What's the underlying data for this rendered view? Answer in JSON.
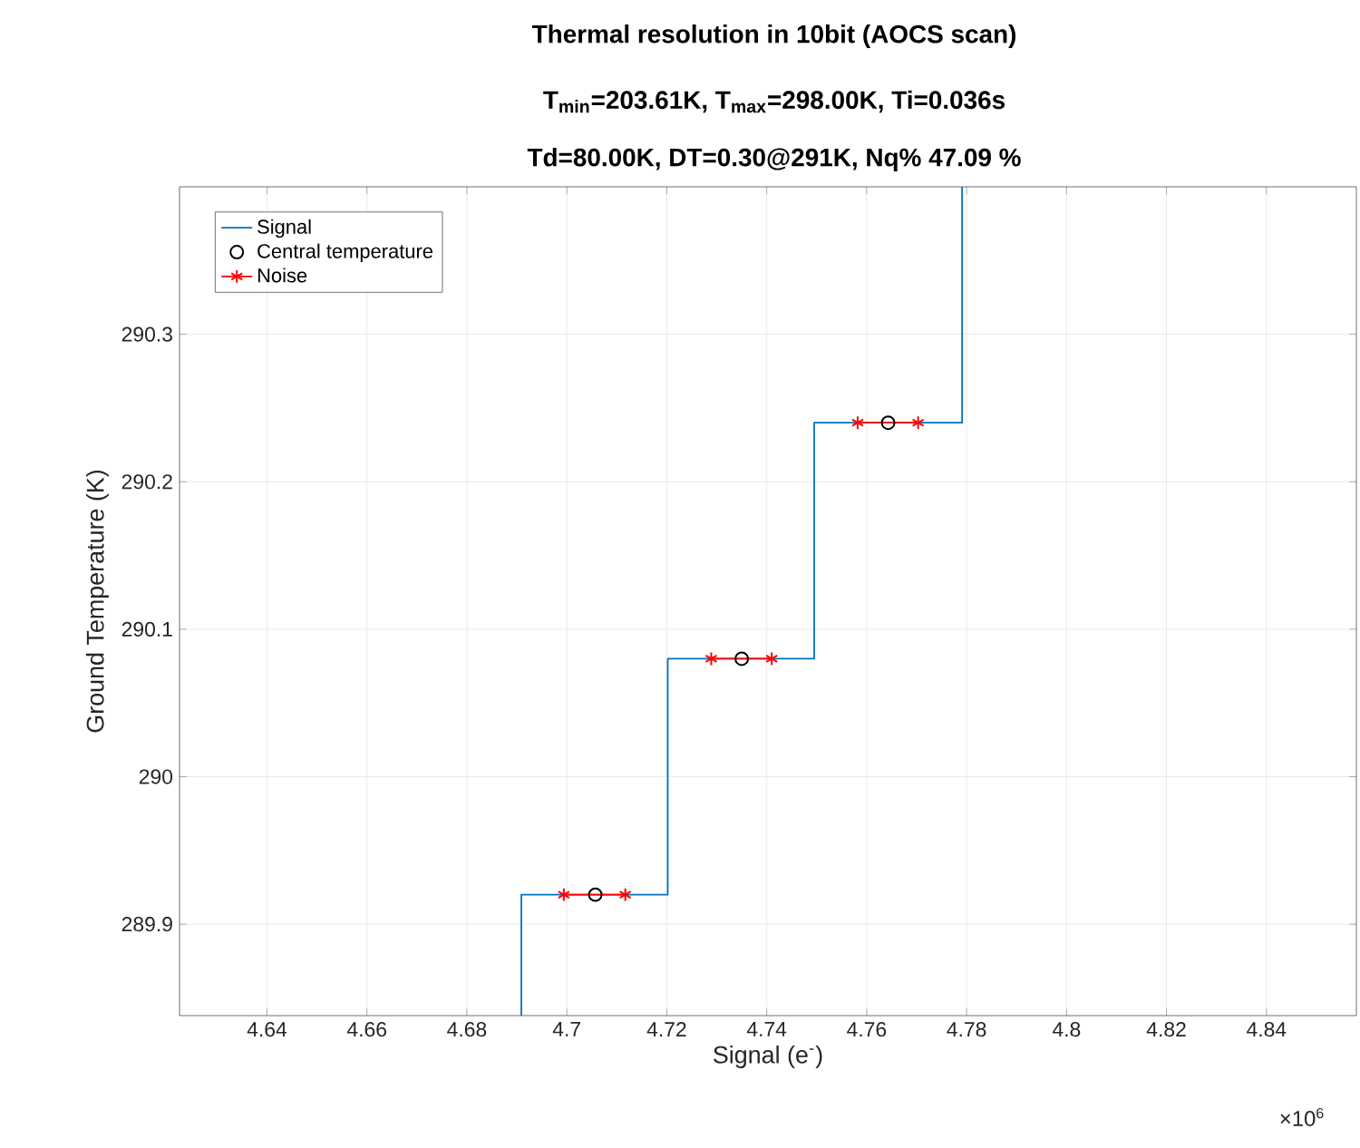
{
  "chart_data": {
    "type": "step",
    "title": "Thermal resolution in 10bit (AOCS scan)",
    "subtitle": "T$_{min}$=203.61K,  T$_{max}$=298.00K, Ti=0.036s",
    "annotations": [
      "Td=80.00K,  DT=0.30@291K,  Nq% 47.09 %",
      "×10$^{6}$"
    ],
    "xlabel": "Signal (e$^{-}$)",
    "ylabel": "Ground Temperature (K)",
    "xlim": [
      4.6225,
      4.858
    ],
    "ylim": [
      289.838,
      290.4
    ],
    "xticks": [
      4.64,
      4.66,
      4.68,
      4.7,
      4.72,
      4.74,
      4.76,
      4.78,
      4.8,
      4.82,
      4.84
    ],
    "yticks": [
      289.9,
      290,
      290.1,
      290.2,
      290.3
    ],
    "grid": true,
    "legend": "top left",
    "series": [
      {
        "name": "Signal",
        "color": "#0072bd",
        "marker": "none",
        "x": [
          4.6909,
          4.7202,
          4.7495,
          4.7791,
          4.7791
        ],
        "values": [
          289.838,
          289.92,
          290.08,
          290.24,
          290.4
        ]
      },
      {
        "name": "Central temperature",
        "type": "scatter",
        "color": "#000000",
        "marker": "circle",
        "x": [
          4.7057,
          4.735,
          4.7643
        ],
        "values": [
          289.92,
          290.08,
          290.24
        ]
      },
      {
        "name": "Noise",
        "type": "line",
        "color": "#ff0000",
        "marker": "cross",
        "x": [
          4.6994,
          4.7117,
          null,
          4.7289,
          4.741,
          null,
          4.7582,
          4.7703
        ],
        "values": [
          289.92,
          289.92,
          null,
          290.08,
          290.08,
          null,
          290.24,
          290.24
        ]
      }
    ]
  }
}
